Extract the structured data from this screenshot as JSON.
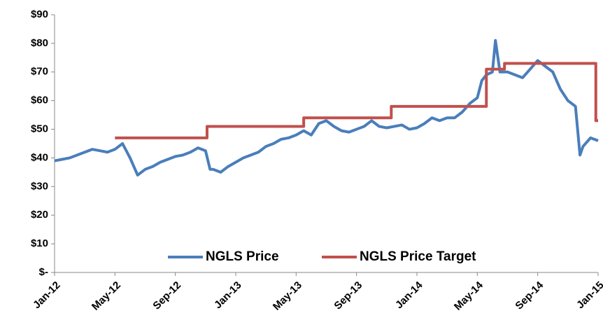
{
  "chart_data": {
    "type": "line",
    "xlim": [
      0,
      36
    ],
    "xticks": [
      {
        "value": 0,
        "label": "Jan-12"
      },
      {
        "value": 4,
        "label": "May-12"
      },
      {
        "value": 8,
        "label": "Sep-12"
      },
      {
        "value": 12,
        "label": "Jan-13"
      },
      {
        "value": 16,
        "label": "May-13"
      },
      {
        "value": 20,
        "label": "Sep-13"
      },
      {
        "value": 24,
        "label": "Jan-14"
      },
      {
        "value": 28,
        "label": "May-14"
      },
      {
        "value": 32,
        "label": "Sep-14"
      },
      {
        "value": 36,
        "label": "Jan-15"
      }
    ],
    "ylim": [
      0,
      90
    ],
    "yticks": [
      {
        "value": 0,
        "label": "$-"
      },
      {
        "value": 10,
        "label": "$10"
      },
      {
        "value": 20,
        "label": "$20"
      },
      {
        "value": 30,
        "label": "$30"
      },
      {
        "value": 40,
        "label": "$40"
      },
      {
        "value": 50,
        "label": "$50"
      },
      {
        "value": 60,
        "label": "$60"
      },
      {
        "value": 70,
        "label": "$70"
      },
      {
        "value": 80,
        "label": "$80"
      },
      {
        "value": 90,
        "label": "$90"
      }
    ],
    "grid": false,
    "legend": "bottom",
    "series": [
      {
        "name": "NGLS Price",
        "color": "#4a7ebb",
        "x": [
          0,
          0.5,
          1,
          1.5,
          2,
          2.5,
          3,
          3.5,
          4,
          4.5,
          5,
          5.5,
          6,
          6.5,
          7,
          7.5,
          8,
          8.5,
          9,
          9.5,
          10,
          10.3,
          10.5,
          11,
          11.5,
          12,
          12.5,
          13,
          13.5,
          14,
          14.5,
          15,
          15.5,
          16,
          16.5,
          17,
          17.5,
          18,
          18.5,
          19,
          19.5,
          20,
          20.5,
          21,
          21.5,
          22,
          22.5,
          23,
          23.5,
          24,
          24.5,
          25,
          25.5,
          26,
          26.5,
          27,
          27.5,
          28,
          28.3,
          28.6,
          29,
          29.2,
          29.5,
          30,
          30.5,
          31,
          31.5,
          32,
          32.5,
          33,
          33.5,
          34,
          34.5,
          34.8,
          35,
          35.5,
          36
        ],
        "values": [
          39,
          39.5,
          40,
          41,
          42,
          43,
          42.5,
          42,
          43,
          45,
          40,
          34,
          36,
          37,
          38.5,
          39.5,
          40.5,
          41,
          42,
          43.5,
          42.5,
          36,
          36,
          35,
          37,
          38.5,
          40,
          41,
          42,
          44,
          45,
          46.5,
          47,
          48,
          49.5,
          48,
          52,
          53,
          51,
          49.5,
          49,
          50,
          51,
          53,
          51,
          50.5,
          51,
          51.5,
          50,
          50.5,
          52,
          54,
          53,
          54,
          54,
          56,
          59,
          61,
          67,
          69,
          70,
          81,
          70,
          70,
          69,
          68,
          71,
          74,
          72,
          70,
          64,
          60,
          58,
          41,
          44,
          47,
          46
        ]
      },
      {
        "name": "NGLS Price Target",
        "color": "#c0504d",
        "x": [
          4,
          10.1,
          10.1,
          16.5,
          16.5,
          22.3,
          22.3,
          28.6,
          28.6,
          29.8,
          29.8,
          35.85,
          35.85,
          36
        ],
        "values": [
          47,
          47,
          51,
          51,
          54,
          54,
          58,
          58,
          71,
          71,
          73,
          73,
          53,
          53
        ]
      }
    ]
  }
}
